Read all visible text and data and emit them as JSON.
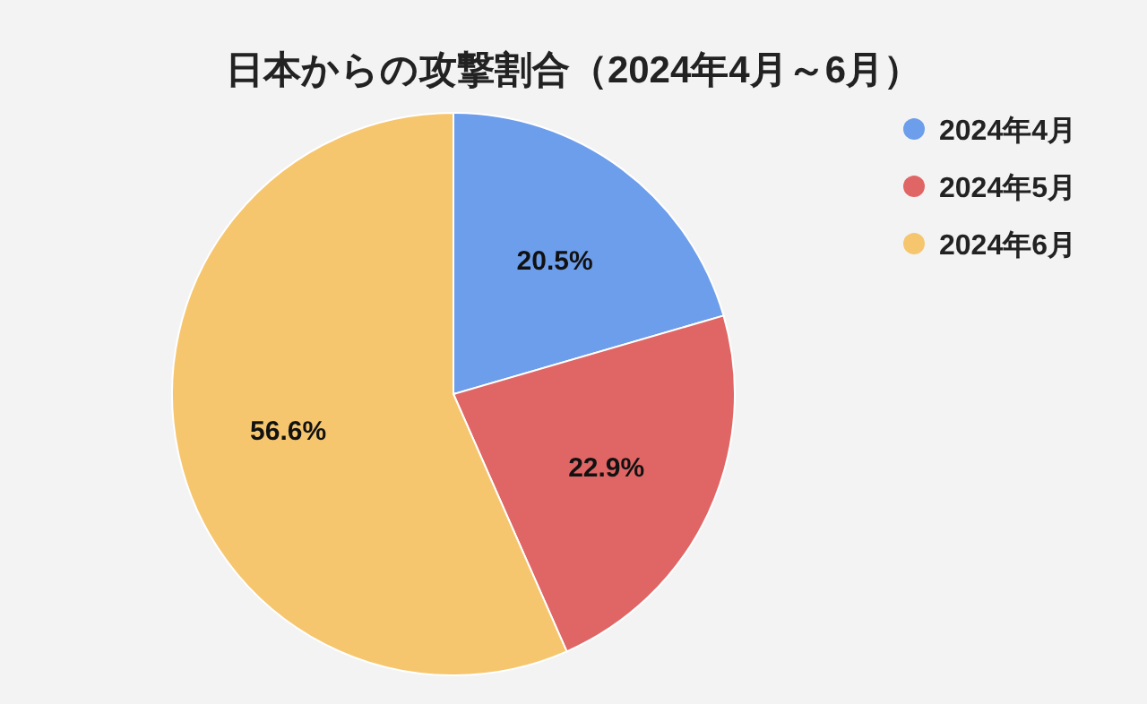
{
  "chart_data": {
    "type": "pie",
    "title": "日本からの攻撃割合（2024年4月～6月）",
    "categories": [
      "2024年4月",
      "2024年5月",
      "2024年6月"
    ],
    "values": [
      20.5,
      22.9,
      56.6
    ],
    "colors": [
      "#6d9eeb",
      "#e06666",
      "#f6c66f"
    ],
    "value_labels": [
      "20.5%",
      "22.9%",
      "56.6%"
    ],
    "legend": "top right"
  }
}
